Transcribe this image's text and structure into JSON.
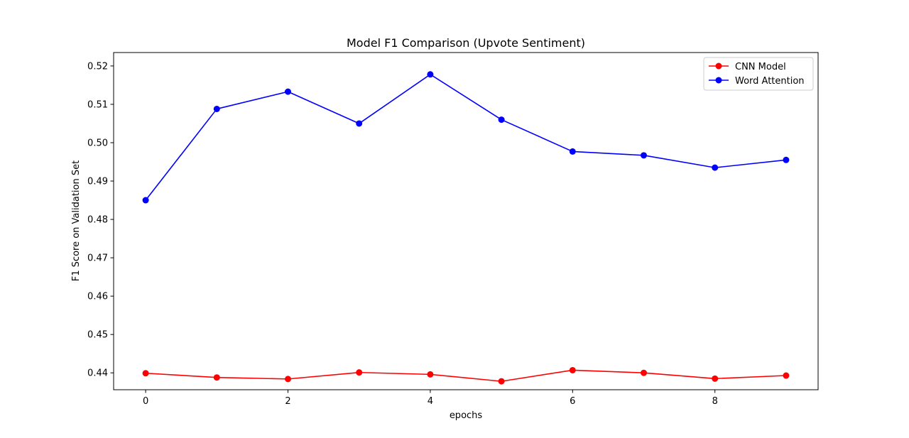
{
  "chart_data": {
    "type": "line",
    "title": "Model F1 Comparison (Upvote Sentiment)",
    "xlabel": "epochs",
    "ylabel": "F1 Score on Validation Set",
    "x": [
      0,
      1,
      2,
      3,
      4,
      5,
      6,
      7,
      8,
      9
    ],
    "xlim": [
      -0.45,
      9.45
    ],
    "ylim": [
      0.4356,
      0.5235
    ],
    "xticks": [
      0,
      2,
      4,
      6,
      8
    ],
    "xtick_labels": [
      "0",
      "2",
      "4",
      "6",
      "8"
    ],
    "yticks": [
      0.44,
      0.45,
      0.46,
      0.47,
      0.48,
      0.49,
      0.5,
      0.51,
      0.52
    ],
    "ytick_labels": [
      "0.44",
      "0.45",
      "0.46",
      "0.47",
      "0.48",
      "0.49",
      "0.50",
      "0.51",
      "0.52"
    ],
    "grid": false,
    "legend_position": "top-right",
    "series": [
      {
        "name": "CNN Model",
        "color": "#ff0000",
        "marker": "circle",
        "values": [
          0.4399,
          0.4388,
          0.4384,
          0.4401,
          0.4396,
          0.4378,
          0.4407,
          0.44,
          0.4385,
          0.4393
        ]
      },
      {
        "name": "Word Attention",
        "color": "#0000ff",
        "marker": "circle",
        "values": [
          0.485,
          0.5088,
          0.5133,
          0.505,
          0.5178,
          0.506,
          0.4977,
          0.4967,
          0.4935,
          0.4955
        ]
      }
    ]
  }
}
